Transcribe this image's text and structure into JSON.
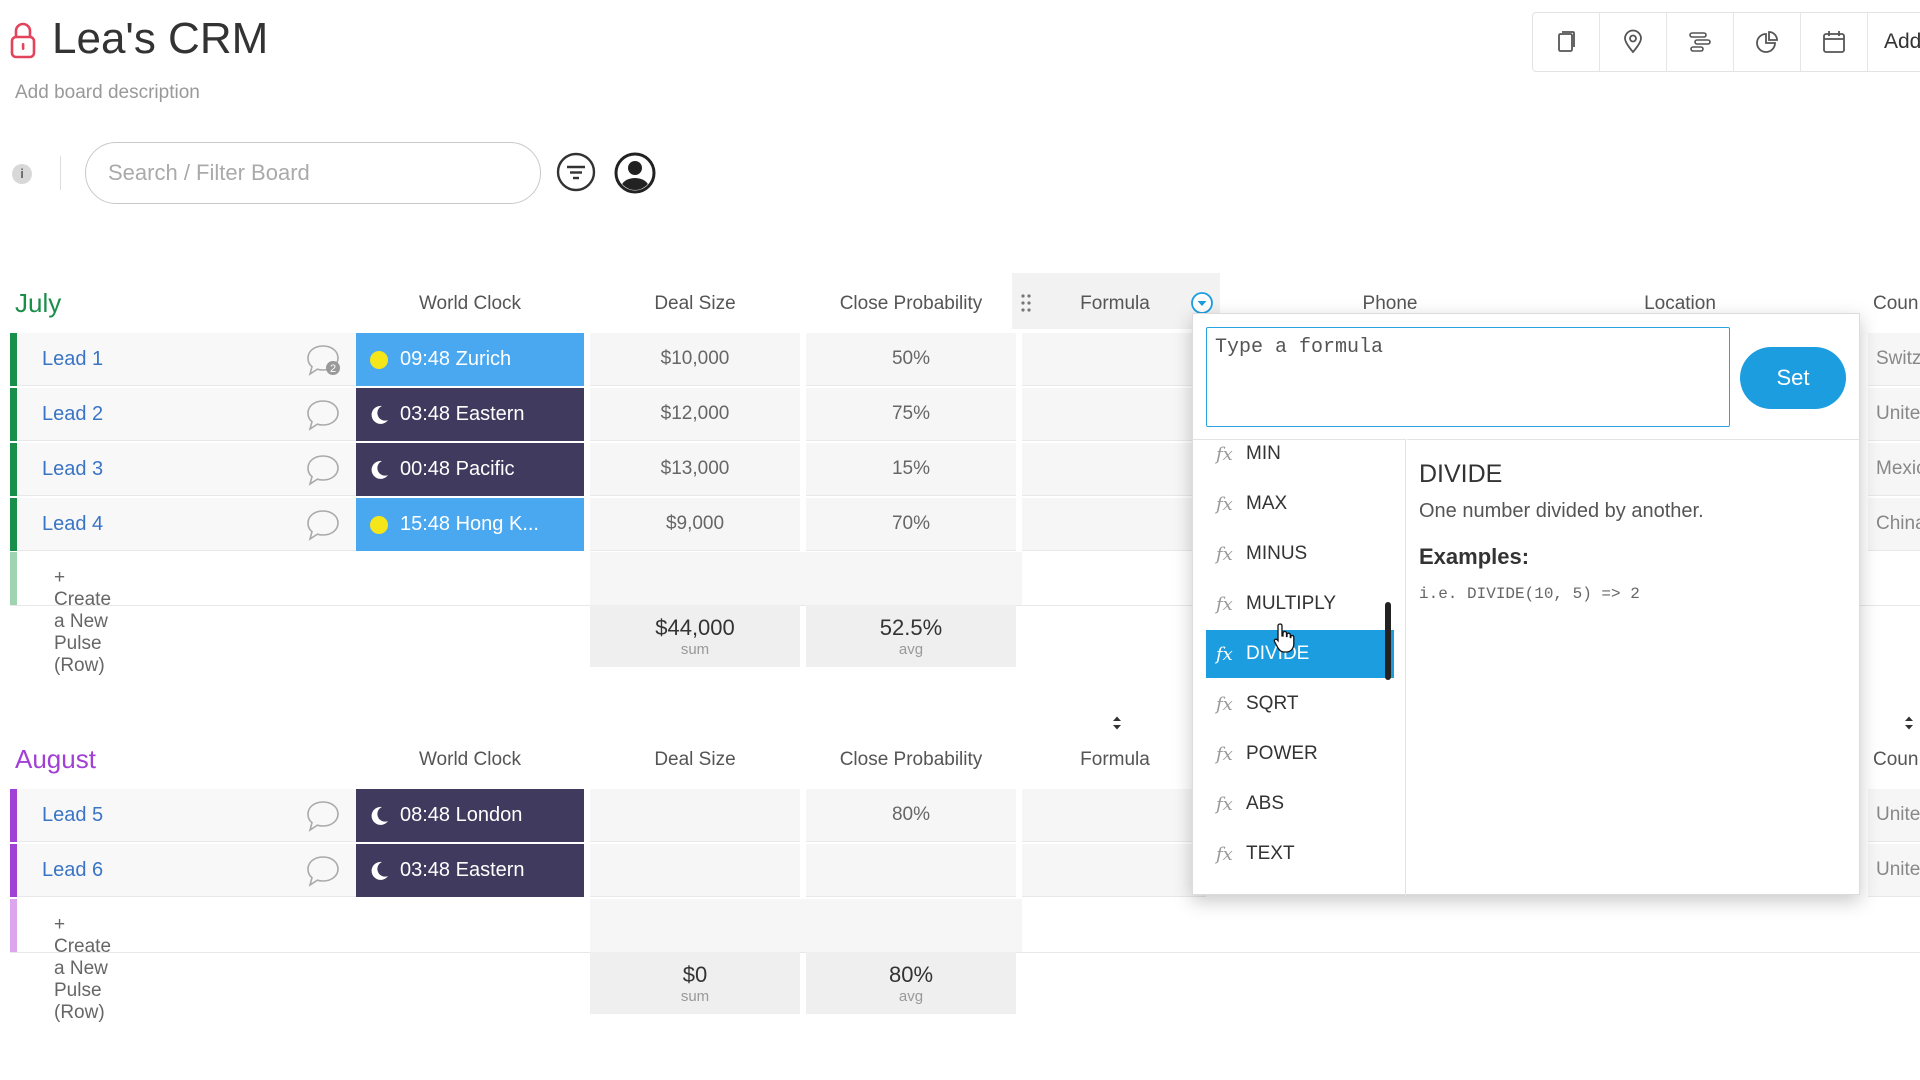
{
  "board": {
    "title": "Lea's CRM",
    "description": "Add board description"
  },
  "toolbar": {
    "add_label": "Add",
    "icons": [
      "page-icon",
      "location-pin-icon",
      "timeline-icon",
      "pie-chart-icon",
      "calendar-icon"
    ]
  },
  "search": {
    "placeholder": "Search / Filter Board"
  },
  "info_label": "i",
  "columns": {
    "world_clock": "World Clock",
    "deal_size": "Deal Size",
    "close_probability": "Close Probability",
    "formula": "Formula",
    "phone": "Phone",
    "location": "Location",
    "country": "Coun"
  },
  "groups": [
    {
      "title": "July",
      "color": "#1a8f4a",
      "create_label": "+ Create a New Pulse (Row)",
      "rows": [
        {
          "name": "Lead 1",
          "clock": "09:48 Zurich",
          "clock_mode": "day",
          "deal": "$10,000",
          "prob": "50%",
          "country": "Switz",
          "comments": "2"
        },
        {
          "name": "Lead 2",
          "clock": "03:48 Eastern",
          "clock_mode": "night",
          "deal": "$12,000",
          "prob": "75%",
          "country": "Unitec"
        },
        {
          "name": "Lead 3",
          "clock": "00:48 Pacific",
          "clock_mode": "night",
          "deal": "$13,000",
          "prob": "15%",
          "country": "Mexic"
        },
        {
          "name": "Lead 4",
          "clock": "15:48 Hong K...",
          "clock_mode": "day",
          "deal": "$9,000",
          "prob": "70%",
          "country": "China"
        }
      ],
      "summary": {
        "deal": "$44,000",
        "deal_label": "sum",
        "prob": "52.5%",
        "prob_label": "avg"
      }
    },
    {
      "title": "August",
      "color": "#a140d4",
      "create_label": "+ Create a New Pulse (Row)",
      "rows": [
        {
          "name": "Lead 5",
          "clock": "08:48 London",
          "clock_mode": "night",
          "deal": "",
          "prob": "80%",
          "country": "Unitec"
        },
        {
          "name": "Lead 6",
          "clock": "03:48 Eastern",
          "clock_mode": "night",
          "deal": "",
          "prob": "",
          "country": "Unitec"
        }
      ],
      "summary": {
        "deal": "$0",
        "deal_label": "sum",
        "prob": "80%",
        "prob_label": "avg"
      }
    }
  ],
  "formula_panel": {
    "input_placeholder": "Type a formula",
    "set_label": "Set",
    "functions": [
      "MIN",
      "MAX",
      "MINUS",
      "MULTIPLY",
      "DIVIDE",
      "SQRT",
      "POWER",
      "ABS",
      "TEXT"
    ],
    "selected": "DIVIDE",
    "fx_symbol": "fx",
    "detail": {
      "title": "DIVIDE",
      "description": "One number divided by another.",
      "examples_label": "Examples:",
      "example": "i.e. DIVIDE(10, 5) => 2"
    }
  },
  "colors": {
    "accent": "#1b9de0",
    "clock_day": "#4aa8f0",
    "clock_night": "#403a5e",
    "sun": "#f5e61a"
  }
}
